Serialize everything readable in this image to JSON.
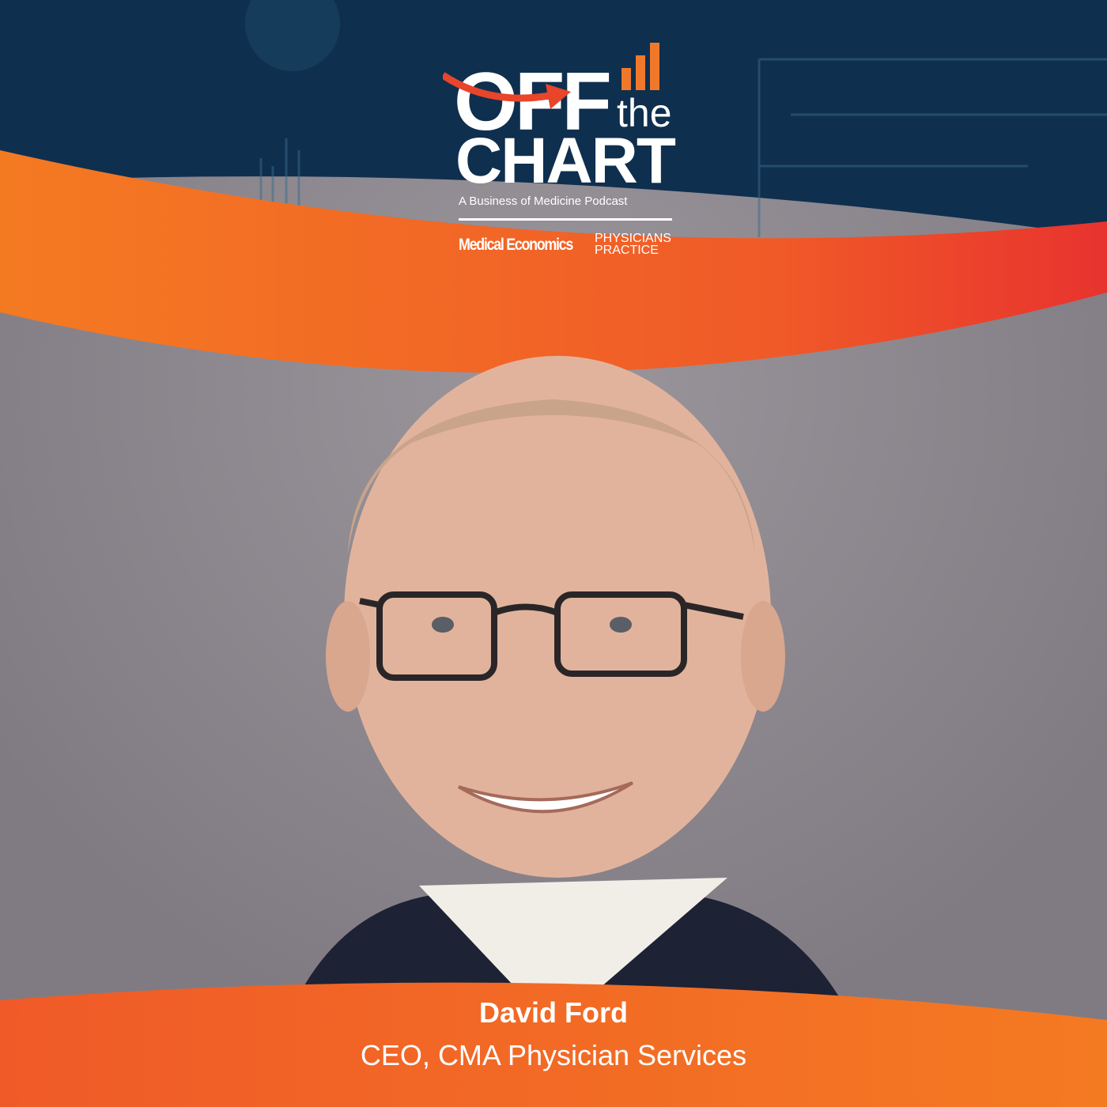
{
  "logo": {
    "word_off": "OFF",
    "word_the": "the",
    "word_chart": "CHART",
    "tagline": "A Business of Medicine Podcast",
    "brand_1": "Medical Economics",
    "brand_2_line1": "PHYSICIANS",
    "brand_2_line2": "PRACTICE"
  },
  "guest": {
    "name": "David Ford",
    "title": "CEO, CMA Physician Services"
  },
  "colors": {
    "navy": "#0f2f4f",
    "orange": "#f26a22",
    "red": "#e8332e",
    "gray": "#8f8a90"
  }
}
